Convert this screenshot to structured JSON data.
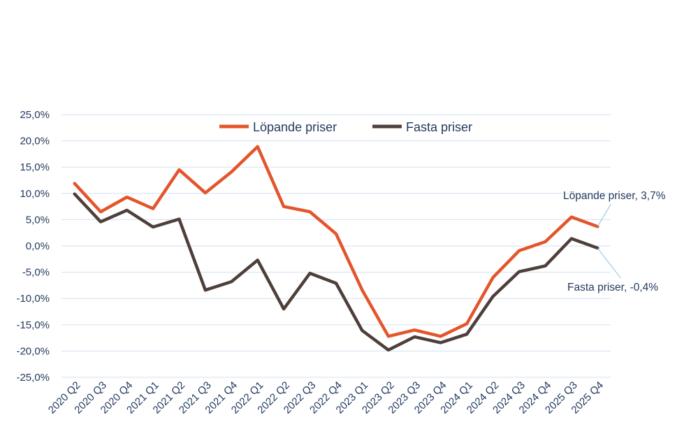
{
  "chart_data": {
    "type": "line",
    "title": "",
    "xlabel": "",
    "ylabel": "",
    "categories": [
      "2020 Q2",
      "2020 Q3",
      "2020 Q4",
      "2021 Q1",
      "2021 Q2",
      "2021 Q3",
      "2021 Q4",
      "2022 Q1",
      "2022 Q2",
      "2022 Q3",
      "2022 Q4",
      "2023 Q1",
      "2023 Q2",
      "2023 Q3",
      "2023 Q4",
      "2024 Q1",
      "2024 Q2",
      "2024 Q3",
      "2024 Q4",
      "2025 Q3",
      "2025 Q4"
    ],
    "ylim": [
      -25,
      25
    ],
    "yticks": [
      25,
      20,
      15,
      10,
      5,
      0,
      -5,
      -10,
      -15,
      -20,
      -25
    ],
    "ytick_labels": [
      "25,0%",
      "20,0%",
      "15,0%",
      "10,0%",
      "5,0%",
      "0,0%",
      "-5,0%",
      "-10,0%",
      "-15,0%",
      "-20,0%",
      "-25,0%"
    ],
    "grid": true,
    "legend_position": "top-center",
    "series": [
      {
        "name": "Löpande priser",
        "color": "#e3552b",
        "values": [
          11.9,
          6.5,
          9.3,
          7.1,
          14.5,
          10.1,
          14.1,
          18.9,
          7.5,
          6.5,
          2.3,
          -8.4,
          -17.2,
          -16.0,
          -17.2,
          -14.8,
          -6.0,
          -0.9,
          0.8,
          5.5,
          3.7
        ],
        "end_label": "Löpande priser, 3,7%"
      },
      {
        "name": "Fasta priser",
        "color": "#4e3f3b",
        "values": [
          9.9,
          4.6,
          6.8,
          3.6,
          5.1,
          -8.4,
          -6.8,
          -2.7,
          -12.0,
          -5.2,
          -7.1,
          -16.1,
          -19.8,
          -17.3,
          -18.4,
          -16.8,
          -9.6,
          -4.9,
          -3.8,
          1.4,
          -0.4
        ],
        "end_label": "Fasta priser, -0,4%"
      }
    ]
  }
}
